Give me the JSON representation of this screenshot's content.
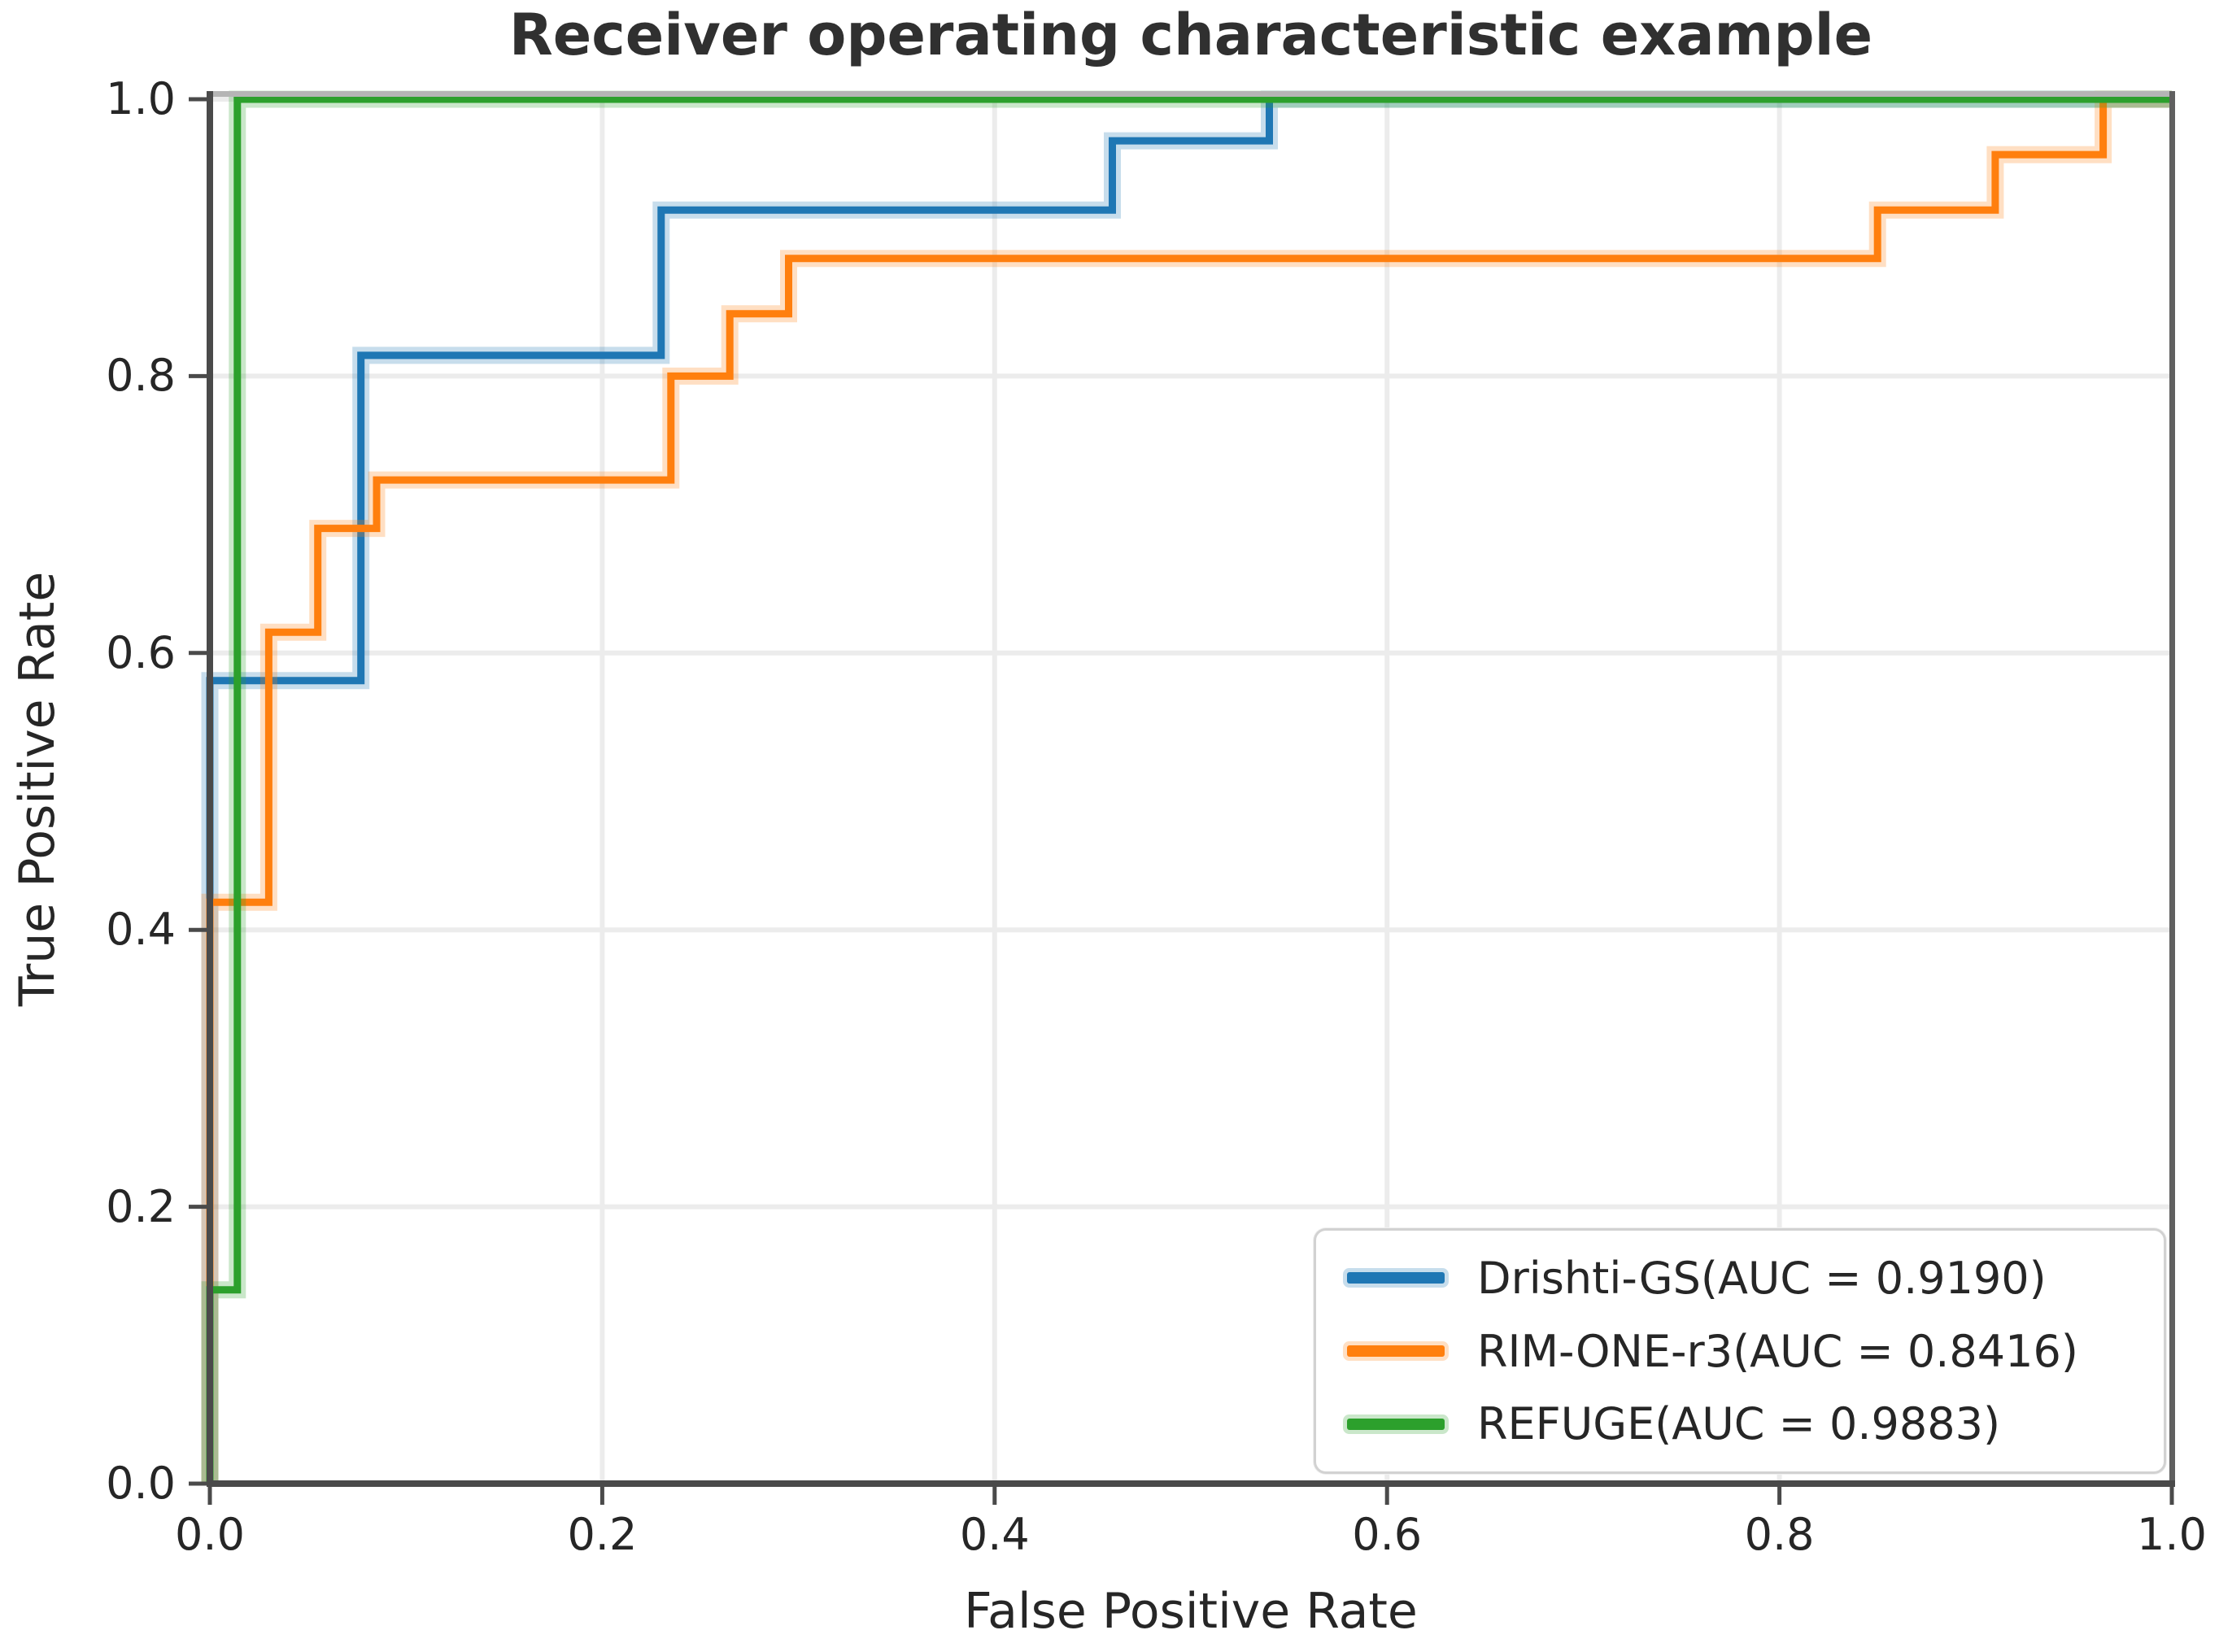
{
  "title": "Receiver operating characteristic example",
  "x_axis": {
    "label": "False Positive Rate",
    "tick_labels": [
      "0.0",
      "0.2",
      "0.4",
      "0.6",
      "0.8",
      "1.0"
    ],
    "tick_values": [
      0,
      0.2,
      0.4,
      0.6,
      0.8,
      1.0
    ]
  },
  "y_axis": {
    "label": "True Positive Rate",
    "tick_labels": [
      "0.0",
      "0.2",
      "0.4",
      "0.6",
      "0.8",
      "1.0"
    ],
    "tick_values": [
      0,
      0.2,
      0.4,
      0.6,
      0.8,
      1.0
    ]
  },
  "colors": {
    "grid": "#ececec",
    "spine_dark": "#4a4a4a",
    "spine_right": "#606060",
    "spine_top": "#b5b5b5",
    "text": "#262626"
  },
  "chart_data": {
    "type": "line",
    "subtype": "roc-step-curves",
    "title": "Receiver operating characteristic example",
    "xlabel": "False Positive Rate",
    "ylabel": "True Positive Rate",
    "xlim": [
      0,
      1
    ],
    "ylim": [
      0,
      1
    ],
    "grid": true,
    "legend_position": "lower right",
    "series": [
      {
        "id": "drishti-gs",
        "label": "Drishti-GS(AUC = 0.9190)",
        "dataset": "Drishti-GS",
        "auc": 0.919,
        "color": "#1f77b4",
        "points": [
          [
            0,
            0
          ],
          [
            0,
            0.58
          ],
          [
            0.077,
            0.58
          ],
          [
            0.077,
            0.815
          ],
          [
            0.23,
            0.815
          ],
          [
            0.23,
            0.92
          ],
          [
            0.46,
            0.92
          ],
          [
            0.46,
            0.97
          ],
          [
            0.54,
            0.97
          ],
          [
            0.54,
            1.0
          ],
          [
            1.0,
            1.0
          ]
        ]
      },
      {
        "id": "rim-one-r3",
        "label": "RIM-ONE-r3(AUC = 0.8416)",
        "dataset": "RIM-ONE-r3",
        "auc": 0.8416,
        "color": "#ff7f0e",
        "points": [
          [
            0,
            0
          ],
          [
            0,
            0.42
          ],
          [
            0.03,
            0.42
          ],
          [
            0.03,
            0.615
          ],
          [
            0.055,
            0.615
          ],
          [
            0.055,
            0.69
          ],
          [
            0.085,
            0.69
          ],
          [
            0.085,
            0.725
          ],
          [
            0.235,
            0.725
          ],
          [
            0.235,
            0.8
          ],
          [
            0.265,
            0.8
          ],
          [
            0.265,
            0.845
          ],
          [
            0.295,
            0.845
          ],
          [
            0.295,
            0.885
          ],
          [
            0.85,
            0.885
          ],
          [
            0.85,
            0.92
          ],
          [
            0.91,
            0.92
          ],
          [
            0.91,
            0.96
          ],
          [
            0.965,
            0.96
          ],
          [
            0.965,
            1.0
          ],
          [
            1.0,
            1.0
          ]
        ]
      },
      {
        "id": "refuge",
        "label": "REFUGE(AUC = 0.9883)",
        "dataset": "REFUGE",
        "auc": 0.9883,
        "color": "#2ca02c",
        "points": [
          [
            0,
            0
          ],
          [
            0,
            0.14
          ],
          [
            0.014,
            0.14
          ],
          [
            0.014,
            1.0
          ],
          [
            1.0,
            1.0
          ]
        ]
      }
    ]
  }
}
